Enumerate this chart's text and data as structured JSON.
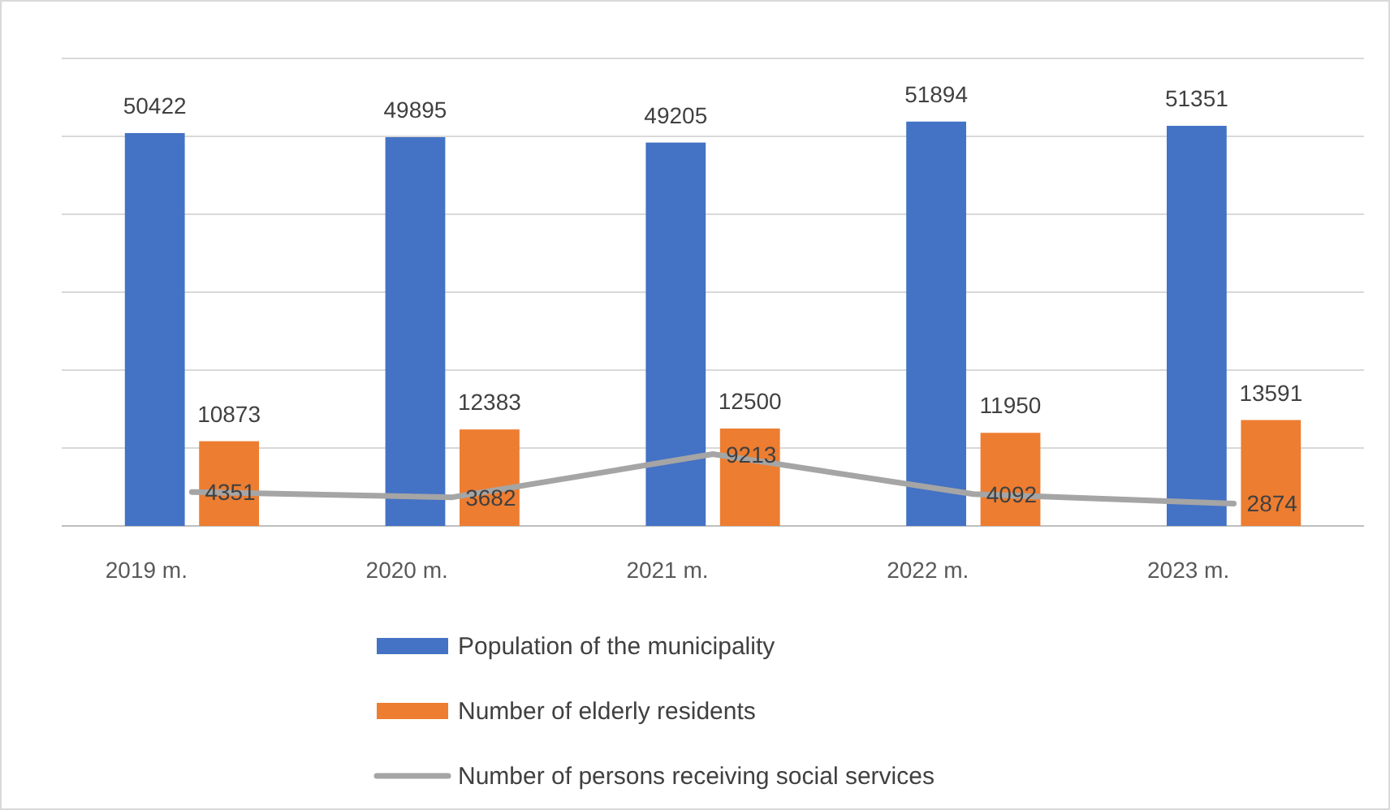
{
  "chart_data": {
    "type": "bar",
    "categories": [
      "2019 m.",
      "2020 m.",
      "2021 m.",
      "2022 m.",
      "2023 m."
    ],
    "series": [
      {
        "name": "Population of the municipality",
        "color": "#4472c4",
        "values": [
          50422,
          49895,
          49205,
          51894,
          51351
        ]
      },
      {
        "name": "Number of elderly residents",
        "color": "#ed7d31",
        "values": [
          10873,
          12383,
          12500,
          11950,
          13591
        ]
      },
      {
        "name": "Number of persons receiving social services",
        "type": "line",
        "color": "#a5a5a5",
        "values": [
          4351,
          3682,
          9213,
          4092,
          2874
        ]
      }
    ],
    "ylim": [
      0,
      60000
    ],
    "yticks": [
      {
        "value": 0,
        "label": null
      },
      {
        "value": 10000,
        "label": null
      },
      {
        "value": 20000,
        "label": null
      },
      {
        "value": 30000,
        "label": null
      },
      {
        "value": 40000,
        "label": null
      },
      {
        "value": 50000,
        "label": null
      },
      {
        "value": 60000,
        "label": null
      }
    ],
    "grid": "y",
    "tick_labels": "x",
    "data_labels": true,
    "legend": "bottom"
  }
}
